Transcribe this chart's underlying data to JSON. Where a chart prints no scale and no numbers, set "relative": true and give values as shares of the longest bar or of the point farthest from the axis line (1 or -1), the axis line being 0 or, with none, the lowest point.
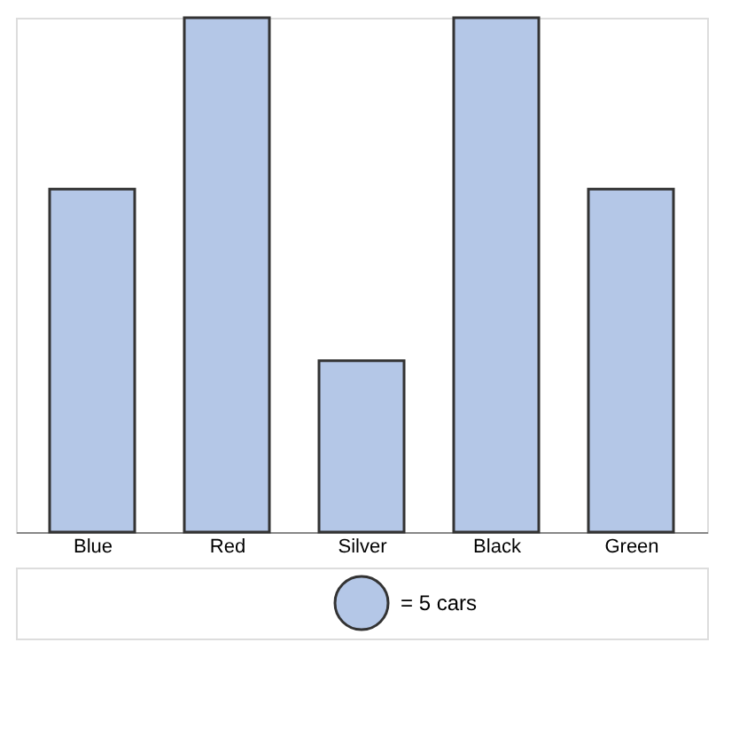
{
  "chart_data": {
    "type": "bar",
    "relative": true,
    "categories": [
      "Blue",
      "Red",
      "Silver",
      "Black",
      "Green"
    ],
    "values": [
      0.6667,
      1,
      0.3333,
      1,
      0.6667
    ],
    "color": "#b4c7e7",
    "annotations": [
      "= 5 cars"
    ]
  }
}
